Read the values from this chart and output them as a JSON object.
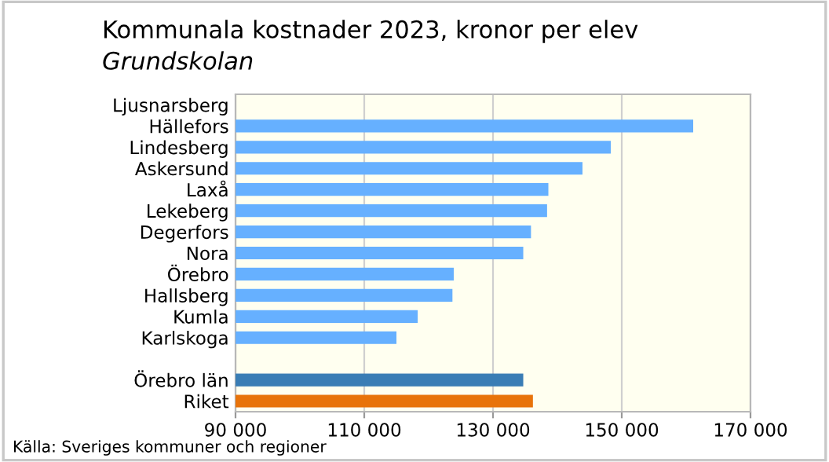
{
  "chart_data": {
    "type": "bar",
    "orientation": "horizontal",
    "title": "Kommunala kostnader 2023, kronor per elev",
    "subtitle": "Grundskolan",
    "categories": [
      "Ljusnarsberg",
      "Hällefors",
      "Lindesberg",
      "Askersund",
      "Laxå",
      "Lekeberg",
      "Degerfors",
      "Nora",
      "Örebro",
      "Hallsberg",
      "Kumla",
      "Karlskoga",
      null,
      "Örebro län",
      "Riket"
    ],
    "values": [
      null,
      161100,
      148300,
      143900,
      138600,
      138400,
      135900,
      134700,
      123900,
      123700,
      118300,
      115000,
      null,
      134700,
      136200
    ],
    "colors": [
      "#66b0ff",
      "#66b0ff",
      "#66b0ff",
      "#66b0ff",
      "#66b0ff",
      "#66b0ff",
      "#66b0ff",
      "#66b0ff",
      "#66b0ff",
      "#66b0ff",
      "#66b0ff",
      "#66b0ff",
      "#66b0ff",
      "#3a7db5",
      "#e8730a"
    ],
    "xlim": [
      90000,
      170000
    ],
    "xticks": [
      {
        "value": 90000,
        "label": "90 000"
      },
      {
        "value": 110000,
        "label": "110 000"
      },
      {
        "value": 130000,
        "label": "130 000"
      },
      {
        "value": 150000,
        "label": "150 000"
      },
      {
        "value": 170000,
        "label": "170 000"
      }
    ],
    "grid": "x",
    "annotations": [
      "Källa: Sveriges kommuner och regioner"
    ]
  }
}
